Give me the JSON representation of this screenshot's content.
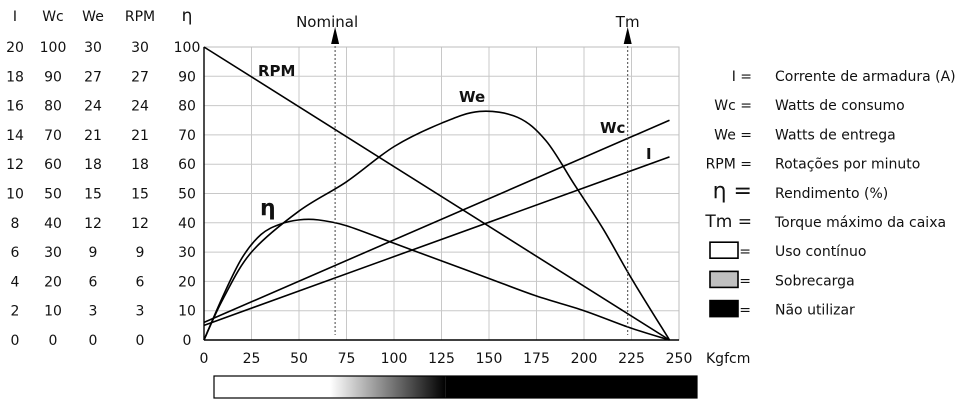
{
  "chart_data": {
    "type": "line",
    "x_ticks": [
      "0",
      "25",
      "50",
      "75",
      "100",
      "125",
      "150",
      "175",
      "200",
      "225",
      "250"
    ],
    "x_unit": "Kgfcm",
    "xlim": [
      0,
      250
    ],
    "grid": true,
    "scale_columns": [
      {
        "header": "I",
        "ticks": [
          "20",
          "18",
          "16",
          "14",
          "12",
          "10",
          "8",
          "6",
          "4",
          "2",
          "0"
        ]
      },
      {
        "header": "Wc",
        "ticks": [
          "100",
          "90",
          "80",
          "70",
          "60",
          "50",
          "40",
          "30",
          "20",
          "10",
          "0"
        ]
      },
      {
        "header": "We",
        "ticks": [
          "30",
          "27",
          "24",
          "21",
          "18",
          "15",
          "12",
          "9",
          "6",
          "3",
          "0"
        ]
      },
      {
        "header": "RPM",
        "ticks": [
          "30",
          "27",
          "24",
          "21",
          "18",
          "15",
          "12",
          "9",
          "6",
          "3",
          "0"
        ]
      },
      {
        "header": "η",
        "ticks": [
          "100",
          "90",
          "80",
          "70",
          "60",
          "50",
          "40",
          "30",
          "20",
          "10",
          "0"
        ]
      }
    ],
    "ylim": [
      0,
      100
    ],
    "series": [
      {
        "name": "RPM",
        "x": [
          0,
          245
        ],
        "y": [
          100,
          0
        ]
      },
      {
        "name": "Wc",
        "x": [
          0,
          245
        ],
        "y": [
          6,
          75
        ]
      },
      {
        "name": "I",
        "x": [
          0,
          245
        ],
        "y": [
          5,
          62.5
        ]
      },
      {
        "name": "We",
        "x": [
          0,
          10,
          25,
          50,
          75,
          100,
          125,
          145,
          165,
          180,
          195,
          210,
          225,
          245
        ],
        "y": [
          0,
          14,
          30,
          44,
          54,
          66,
          74,
          78,
          76,
          68,
          53,
          38,
          21,
          0
        ]
      },
      {
        "name": "η",
        "x": [
          0,
          10,
          20,
          30,
          40,
          50,
          60,
          75,
          100,
          125,
          150,
          175,
          200,
          225,
          245
        ],
        "y": [
          0,
          15,
          28,
          36,
          39.5,
          41,
          41,
          39,
          33,
          27,
          21,
          15,
          10,
          4,
          0
        ]
      }
    ],
    "markers": [
      {
        "label": "Nominal",
        "x": 69
      },
      {
        "label": "Tm",
        "x": 223
      }
    ],
    "zone_bar": {
      "white_until": 60,
      "gradient_until": 120,
      "black_until": 250
    },
    "legend": [
      {
        "symbol": "I =",
        "text": "Corrente de armadura (A)"
      },
      {
        "symbol": "Wc =",
        "text": "Watts de consumo"
      },
      {
        "symbol": "We =",
        "text": "Watts de entrega"
      },
      {
        "symbol": "RPM =",
        "text": "Rotações por minuto"
      },
      {
        "symbol": "η =",
        "text": "Rendimento (%)"
      },
      {
        "symbol": "Tm =",
        "text": "Torque máximo da caixa"
      },
      {
        "box": "#ffffff",
        "symbol": "=",
        "text": "Uso contínuo"
      },
      {
        "box": "#c0c0c0",
        "symbol": "=",
        "text": "Sobrecarga"
      },
      {
        "box": "#000000",
        "symbol": "=",
        "text": "Não utilizar"
      }
    ]
  }
}
